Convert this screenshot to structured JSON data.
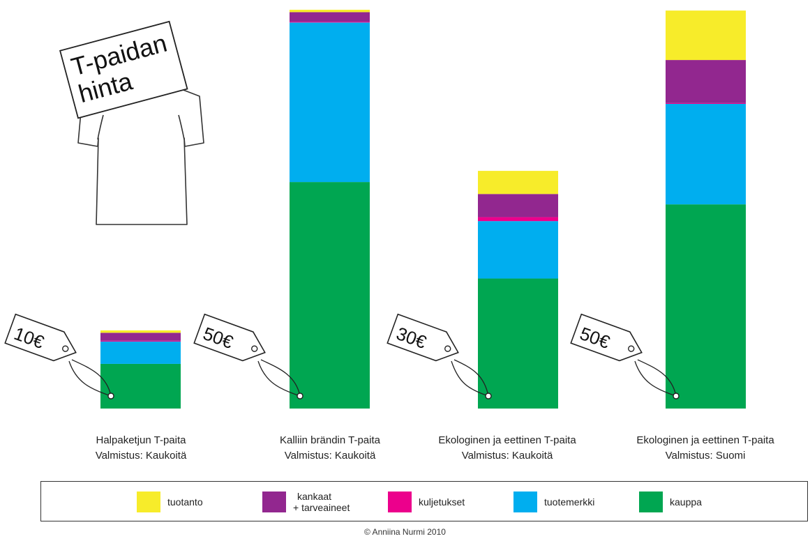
{
  "title_sign": {
    "line1": "T-paidan",
    "line2": "hinta"
  },
  "chart_data": {
    "type": "bar",
    "stacked": true,
    "categories": [
      {
        "price": "10€",
        "line1": "Halpaketjun  T-paita",
        "line2": "Valmistus: Kaukoitä"
      },
      {
        "price": "50€",
        "line1": "Kalliin brändin T-paita",
        "line2": "Valmistus: Kaukoitä"
      },
      {
        "price": "30€",
        "line1": "Ekologinen ja eettinen T-paita",
        "line2": "Valmistus: Kaukoitä"
      },
      {
        "price": "50€",
        "line1": "Ekologinen ja eettinen T-paita",
        "line2": "Valmistus: Suomi"
      }
    ],
    "series": [
      {
        "name": "kauppa",
        "color": "#00a651",
        "values": [
          5.6,
          28.4,
          16.3,
          25.6
        ]
      },
      {
        "name": "tuotemerkki",
        "color": "#00aeef",
        "values": [
          2.8,
          20.0,
          7.2,
          12.6
        ]
      },
      {
        "name": "kuljetukset",
        "color": "#ec008c",
        "values": [
          0.1,
          0.1,
          0.5,
          0.1
        ]
      },
      {
        "name": "kankaat + tarveaineet",
        "label_line1": "kankaat",
        "label_line2": "+ tarveaineet",
        "color": "#92278f",
        "values": [
          1.0,
          1.2,
          2.9,
          5.4
        ]
      },
      {
        "name": "tuotanto",
        "color": "#f7ec2a",
        "values": [
          0.3,
          0.3,
          2.9,
          6.2
        ]
      }
    ],
    "ylim": [
      0,
      50
    ],
    "legend_position": "bottom",
    "legend_order": [
      "tuotanto",
      "kankaat + tarveaineet",
      "kuljetukset",
      "tuotemerkki",
      "kauppa"
    ]
  },
  "copyright": "© Anniina Nurmi 2010"
}
